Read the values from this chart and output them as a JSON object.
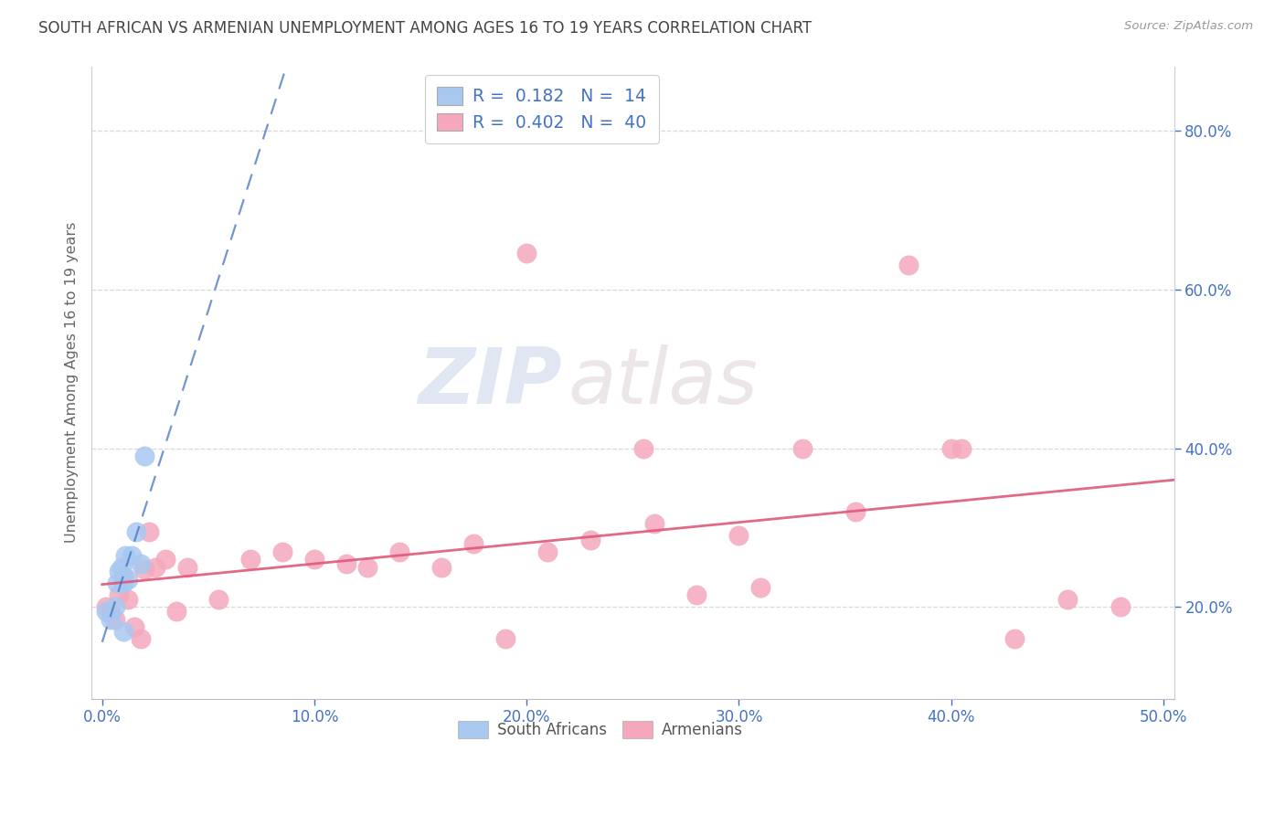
{
  "title": "SOUTH AFRICAN VS ARMENIAN UNEMPLOYMENT AMONG AGES 16 TO 19 YEARS CORRELATION CHART",
  "source": "Source: ZipAtlas.com",
  "xlim": [
    -0.005,
    0.505
  ],
  "ylim": [
    0.085,
    0.88
  ],
  "xtick_vals": [
    0.0,
    0.1,
    0.2,
    0.3,
    0.4,
    0.5
  ],
  "ytick_vals": [
    0.2,
    0.4,
    0.6,
    0.8
  ],
  "south_african_x": [
    0.002,
    0.004,
    0.006,
    0.007,
    0.008,
    0.009,
    0.01,
    0.011,
    0.012,
    0.014,
    0.016,
    0.018,
    0.02,
    0.01
  ],
  "south_african_y": [
    0.195,
    0.185,
    0.2,
    0.23,
    0.245,
    0.25,
    0.23,
    0.265,
    0.235,
    0.265,
    0.295,
    0.255,
    0.39,
    0.17
  ],
  "armenian_x": [
    0.002,
    0.004,
    0.006,
    0.008,
    0.01,
    0.012,
    0.015,
    0.018,
    0.02,
    0.022,
    0.025,
    0.03,
    0.035,
    0.04,
    0.055,
    0.07,
    0.085,
    0.1,
    0.115,
    0.125,
    0.14,
    0.16,
    0.175,
    0.19,
    0.21,
    0.23,
    0.255,
    0.28,
    0.31,
    0.33,
    0.355,
    0.38,
    0.405,
    0.43,
    0.455,
    0.48,
    0.3,
    0.2,
    0.26,
    0.4
  ],
  "armenian_y": [
    0.2,
    0.195,
    0.185,
    0.215,
    0.24,
    0.21,
    0.175,
    0.16,
    0.248,
    0.295,
    0.25,
    0.26,
    0.195,
    0.25,
    0.21,
    0.26,
    0.27,
    0.26,
    0.255,
    0.25,
    0.27,
    0.25,
    0.28,
    0.16,
    0.27,
    0.285,
    0.4,
    0.215,
    0.225,
    0.4,
    0.32,
    0.63,
    0.4,
    0.16,
    0.21,
    0.2,
    0.29,
    0.645,
    0.305,
    0.4
  ],
  "sa_color": "#a8c8f0",
  "arm_color": "#f5a8bc",
  "sa_line_color": "#4472c4",
  "arm_line_color": "#e05878",
  "sa_R": 0.182,
  "sa_N": 14,
  "arm_R": 0.402,
  "arm_N": 40,
  "legend_sa_label": "South Africans",
  "legend_arm_label": "Armenians",
  "ylabel": "Unemployment Among Ages 16 to 19 years",
  "watermark_zip": "ZIP",
  "watermark_atlas": "atlas",
  "background_color": "#ffffff",
  "grid_color": "#d8d8d8",
  "tick_label_color": "#4472c4",
  "legend_text_color": "#4472c4",
  "title_color": "#444444",
  "ylabel_color": "#666666"
}
